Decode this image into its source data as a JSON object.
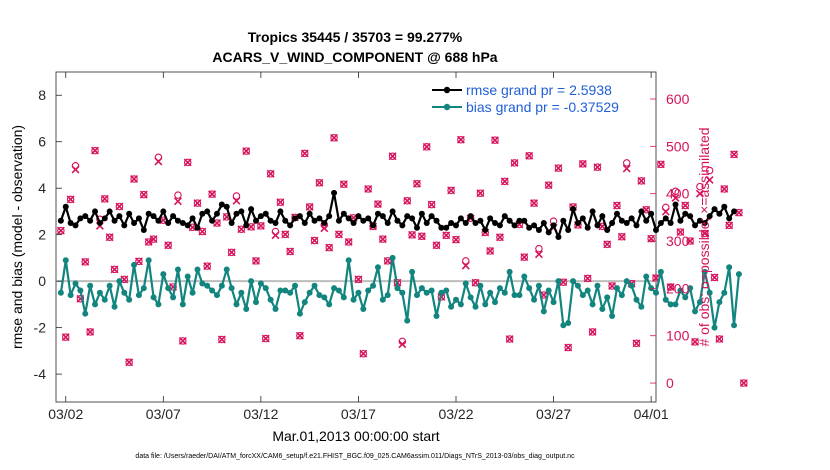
{
  "figure": {
    "title_line1": "Tropics 35445 / 35703 = 99.277%",
    "title_line2": "ACARS_V_WIND_COMPONENT @ 688 hPa",
    "xlabel": "Mar.01,2013 00:00:00 start",
    "ylabel_left": "rmse and bias (model - observation)",
    "ylabel_right": "# of obs: o=possible; ×=assimilated",
    "footer": "data file: /Users/raeder/DAI/ATM_forcXX/CAM6_setup/f.e21.FHIST_BGC.f09_025.CAM6assim.011/Diags_NTrS_2013-03/obs_diag_output.nc"
  },
  "colors": {
    "rmse": "#000000",
    "bias": "#12857f",
    "obs": "#d6135d",
    "zero_line": "#bdbdbd",
    "legend_text": "#1f5fd6"
  },
  "chart_data": {
    "type": "line",
    "title": "Tropics 35445 / 35703 = 99.277% — ACARS_V_WIND_COMPONENT @ 688 hPa",
    "xlabel": "Mar.01,2013 00:00:00 start",
    "ylabel": "rmse and bias (model - observation)",
    "y2label": "# of obs: o=possible; ×=assimilated",
    "xlim": [
      1.5,
      32.25
    ],
    "ylim": [
      -5.2,
      9
    ],
    "y2lim": [
      -40,
      657
    ],
    "xticks": [
      {
        "day": 2,
        "label": "03/02"
      },
      {
        "day": 7,
        "label": "03/07"
      },
      {
        "day": 12,
        "label": "03/12"
      },
      {
        "day": 17,
        "label": "03/17"
      },
      {
        "day": 22,
        "label": "03/22"
      },
      {
        "day": 27,
        "label": "03/27"
      },
      {
        "day": 32,
        "label": "04/01"
      }
    ],
    "yticks": [
      -4,
      -2,
      0,
      2,
      4,
      6,
      8
    ],
    "y2ticks": [
      0,
      100,
      200,
      300,
      400,
      500,
      600
    ],
    "x_start_day": 1.75,
    "x_step_days": 0.25,
    "series": [
      {
        "name": "rmse",
        "legend": "rmse grand pr = 2.5938",
        "marker": "*",
        "values": [
          2.6,
          3.2,
          2.5,
          2.4,
          2.7,
          2.8,
          2.6,
          3.0,
          2.5,
          2.7,
          3.0,
          2.6,
          2.8,
          2.4,
          2.9,
          2.5,
          2.7,
          2.2,
          2.9,
          2.8,
          2.6,
          3.0,
          2.5,
          2.8,
          2.6,
          2.5,
          2.4,
          2.7,
          2.3,
          2.9,
          3.0,
          2.6,
          2.9,
          3.3,
          3.2,
          2.5,
          2.9,
          3.0,
          2.4,
          3.1,
          2.6,
          2.8,
          2.9,
          2.6,
          2.5,
          3.0,
          2.6,
          2.4,
          2.7,
          2.8,
          2.5,
          2.9,
          2.6,
          2.7,
          2.5,
          2.8,
          3.8,
          2.6,
          2.9,
          2.7,
          2.5,
          2.8,
          2.6,
          2.7,
          2.4,
          2.9,
          2.8,
          2.5,
          3.0,
          2.6,
          2.4,
          2.8,
          2.7,
          2.3,
          2.9,
          2.5,
          2.8,
          2.6,
          2.3,
          2.3,
          2.5,
          2.4,
          2.7,
          2.5,
          2.8,
          2.5,
          2.6,
          2.2,
          2.7,
          2.5,
          2.4,
          2.8,
          2.6,
          2.4,
          2.6,
          2.6,
          2.3,
          2.4,
          2.2,
          2.5,
          2.1,
          2.4,
          1.9,
          2.6,
          2.2,
          3.1,
          2.5,
          2.7,
          2.3,
          3.0,
          2.4,
          2.8,
          2.2,
          2.5,
          2.9,
          2.6,
          2.5,
          2.7,
          2.4,
          3.0,
          2.6,
          2.9,
          2.2,
          2.5,
          2.7,
          2.5,
          3.3,
          2.6,
          2.9,
          2.8,
          2.4,
          2.6,
          2.5,
          2.8,
          3.1,
          2.9,
          3.2,
          2.7,
          3.0
        ]
      },
      {
        "name": "bias",
        "legend": "bias grand pr = -0.37529",
        "marker": "o",
        "values": [
          -0.5,
          0.9,
          -0.6,
          -0.1,
          -0.4,
          -1.4,
          -0.2,
          -1.0,
          -0.5,
          -0.8,
          -0.2,
          -1.1,
          0.0,
          -0.5,
          -0.8,
          0.7,
          -0.6,
          -0.3,
          0.9,
          -0.7,
          -1.0,
          0.3,
          -0.3,
          -0.7,
          0.5,
          -1.0,
          0.2,
          -0.5,
          0.5,
          -0.1,
          -0.2,
          -0.4,
          -0.6,
          -0.2,
          0.5,
          -0.3,
          -1.0,
          -0.5,
          -1.2,
          0.0,
          -0.9,
          -0.1,
          -0.3,
          -0.8,
          -1.2,
          -0.4,
          -0.4,
          -0.5,
          -0.2,
          -1.4,
          -0.9,
          -0.5,
          -0.2,
          -0.6,
          -0.7,
          -1.0,
          -0.3,
          -0.4,
          -0.7,
          0.9,
          -0.8,
          -0.5,
          -1.2,
          -0.4,
          -0.2,
          0.6,
          -0.8,
          -0.6,
          1.0,
          -0.3,
          -0.5,
          -1.7,
          0.4,
          -0.6,
          -0.3,
          -0.5,
          -0.4,
          -1.5,
          -0.5,
          -0.4,
          -1.1,
          -0.8,
          -1.0,
          -0.1,
          -0.7,
          -1.1,
          -0.2,
          -1.0,
          -0.5,
          -0.9,
          -0.3,
          -0.5,
          0.4,
          -0.6,
          -0.6,
          0.2,
          -0.3,
          -0.8,
          -0.2,
          -1.3,
          -0.4,
          -0.9,
          0.0,
          -1.9,
          -1.8,
          0.0,
          -0.2,
          -0.6,
          -0.4,
          -1.0,
          -0.2,
          -1.2,
          -0.7,
          -1.5,
          -0.3,
          -0.6,
          0.0,
          -0.2,
          -0.8,
          -1.1,
          0.2,
          -0.3,
          -0.5,
          0.4,
          -0.8,
          -1.0,
          -1.0,
          -0.4,
          -0.7,
          -0.3,
          -1.3,
          -0.9,
          0.4,
          -0.5,
          -2.0,
          -0.9,
          -0.5,
          0.6,
          -1.9,
          0.3
        ]
      },
      {
        "name": "obs_assimilated",
        "axis": "right",
        "marker": "x",
        "values": [
          322,
          97,
          388,
          451,
          178,
          256,
          108,
          491,
          332,
          389,
          308,
          240,
          373,
          219,
          44,
          431,
          257,
          398,
          298,
          304,
          468,
          344,
          291,
          203,
          384,
          89,
          466,
          329,
          380,
          320,
          247,
          399,
          338,
          92,
          351,
          276,
          385,
          325,
          490,
          330,
          258,
          332,
          94,
          442,
          312,
          382,
          314,
          278,
          350,
          100,
          485,
          372,
          301,
          423,
          327,
          286,
          518,
          314,
          420,
          298,
          349,
          219,
          62,
          410,
          331,
          378,
          304,
          258,
          479,
          212,
          82,
          385,
          313,
          421,
          310,
          499,
          377,
          291,
          182,
          312,
          407,
          303,
          514,
          248,
          348,
          212,
          401,
          318,
          279,
          513,
          308,
          426,
          93,
          465,
          335,
          266,
          480,
          380,
          272,
          186,
          418,
          328,
          454,
          213,
          75,
          372,
          334,
          463,
          221,
          108,
          456,
          331,
          293,
          205,
          375,
          309,
          453,
          210,
          84,
          427,
          366,
          305,
          222,
          462,
          362,
          203,
          391,
          319,
          375,
          300,
          87,
          400,
          316,
          429,
          223,
          93,
          410,
          333,
          483,
          360,
          0
        ]
      },
      {
        "name": "obs_possible",
        "axis": "right",
        "marker": "o",
        "values": [
          322,
          97,
          388,
          451,
          178,
          256,
          108,
          491,
          332,
          389,
          308,
          240,
          373,
          219,
          44,
          431,
          257,
          398,
          298,
          304,
          468,
          344,
          291,
          203,
          384,
          89,
          466,
          329,
          380,
          320,
          247,
          399,
          338,
          92,
          351,
          276,
          385,
          325,
          490,
          330,
          258,
          332,
          94,
          442,
          312,
          382,
          314,
          278,
          350,
          100,
          485,
          372,
          301,
          423,
          327,
          286,
          518,
          314,
          420,
          298,
          349,
          219,
          62,
          410,
          331,
          378,
          304,
          258,
          479,
          212,
          82,
          385,
          313,
          421,
          310,
          499,
          377,
          291,
          182,
          312,
          407,
          303,
          514,
          248,
          348,
          212,
          401,
          318,
          279,
          513,
          308,
          426,
          93,
          465,
          335,
          266,
          480,
          380,
          272,
          186,
          418,
          328,
          454,
          213,
          75,
          372,
          334,
          463,
          221,
          108,
          456,
          331,
          293,
          205,
          375,
          309,
          453,
          210,
          84,
          427,
          366,
          305,
          222,
          462,
          362,
          203,
          391,
          319,
          375,
          300,
          87,
          400,
          316,
          429,
          223,
          93,
          410,
          333,
          483,
          360,
          0
        ]
      }
    ],
    "possible_offsets": [
      {
        "index": 3,
        "delta": 8
      },
      {
        "index": 8,
        "delta": 14
      },
      {
        "index": 20,
        "delta": 9
      },
      {
        "index": 24,
        "delta": 13
      },
      {
        "index": 36,
        "delta": 10
      },
      {
        "index": 44,
        "delta": 8
      },
      {
        "index": 54,
        "delta": 7
      },
      {
        "index": 70,
        "delta": 6
      },
      {
        "index": 83,
        "delta": 10
      },
      {
        "index": 98,
        "delta": 12
      },
      {
        "index": 101,
        "delta": 14
      },
      {
        "index": 116,
        "delta": 12
      },
      {
        "index": 124,
        "delta": 9
      },
      {
        "index": 126,
        "delta": 14
      },
      {
        "index": 131,
        "delta": 15
      },
      {
        "index": 133,
        "delta": 20
      }
    ]
  }
}
